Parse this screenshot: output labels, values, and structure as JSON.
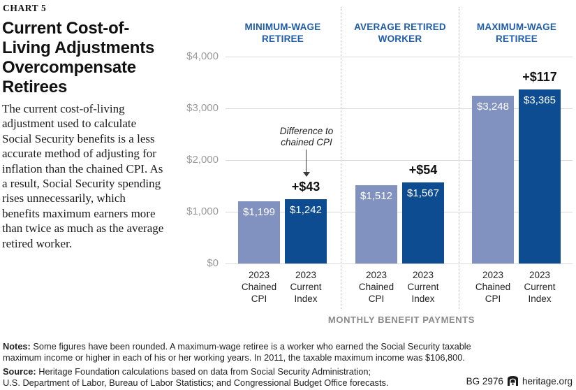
{
  "page": {
    "chart_label": "CHART 5",
    "title": "Current Cost-of-Living Adjustments Overcompensate Retirees",
    "description": "The current cost-of-living adjustment used to calculate Social Security benefits is a less accurate method of adjusting for inflation than the chained CPI. As a result, Social Security spending rises unnecessarily, which benefits maximum earners more than twice as much as the average retired worker."
  },
  "chart_data": {
    "type": "bar",
    "categories": [
      "2023 Chained CPI",
      "2023 Current Index"
    ],
    "groups": [
      {
        "label": "MINIMUM-WAGE RETIREE",
        "bars": [
          {
            "category": "2023 Chained CPI",
            "value": 1199,
            "display": "$1,199"
          },
          {
            "category": "2023 Current Index",
            "value": 1242,
            "display": "$1,242",
            "difference": "+$43"
          }
        ]
      },
      {
        "label": "AVERAGE RETIRED WORKER",
        "bars": [
          {
            "category": "2023 Chained CPI",
            "value": 1512,
            "display": "$1,512"
          },
          {
            "category": "2023 Current Index",
            "value": 1567,
            "display": "$1,567",
            "difference": "+$54"
          }
        ]
      },
      {
        "label": "MAXIMUM-WAGE RETIREE",
        "bars": [
          {
            "category": "2023 Chained CPI",
            "value": 3248,
            "display": "$3,248"
          },
          {
            "category": "2023 Current Index",
            "value": 3365,
            "display": "$3,365",
            "difference": "+$117"
          }
        ]
      }
    ],
    "ylim": [
      0,
      4000
    ],
    "yticks": [
      {
        "value": 4000,
        "label": "$4,000"
      },
      {
        "value": 3000,
        "label": "$3,000"
      },
      {
        "value": 2000,
        "label": "$2,000"
      },
      {
        "value": 1000,
        "label": "$1,000"
      },
      {
        "value": 0,
        "label": "$0"
      }
    ],
    "xlabel": "MONTHLY BENEFIT PAYMENTS",
    "annotation": "Difference to chained CPI",
    "grid": "horizontal",
    "legend": "none",
    "series_colors": {
      "chained_cpi": "#8192C1",
      "current_index": "#0E4C92"
    }
  },
  "colors": {
    "accent_blue": "#1F5CA9",
    "bar_light": "#8192C1",
    "bar_dark": "#0E4C92",
    "gridline": "#d9d9d9",
    "axis_gray": "#9b9b9b",
    "label_gray": "#8a8a8a"
  },
  "footer": {
    "notes_label": "Notes:",
    "notes_line1": "Some figures have been rounded. A maximum-wage retiree is a worker who earned the Social Security taxable",
    "notes_line2": "maximum income or higher in each of his or her working years. In 2011, the taxable maximum income was $106,800.",
    "source_label": "Source:",
    "source_line1": "Heritage Foundation calculations based on data from Social Security Administration;",
    "source_line2": "U.S. Department of Labor, Bureau of Labor Statistics; and Congressional Budget Office forecasts.",
    "publication_id": "BG 2976",
    "website": "heritage.org"
  }
}
